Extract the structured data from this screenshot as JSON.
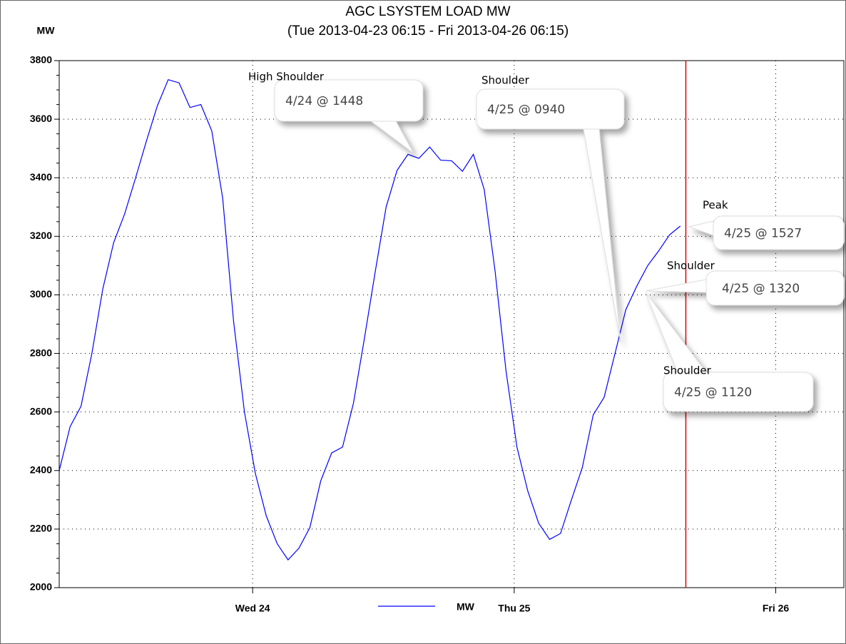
{
  "chart_data": {
    "type": "line",
    "title": "AGC LSYSTEM LOAD MW",
    "subtitle": "(Tue 2013-04-23 06:15 - Fri 2013-04-26 06:15)",
    "y_label": "MW",
    "x": [
      "2013-04-23 06:15",
      "2013-04-23 07:15",
      "2013-04-23 08:15",
      "2013-04-23 09:15",
      "2013-04-23 10:15",
      "2013-04-23 11:15",
      "2013-04-23 12:15",
      "2013-04-23 13:15",
      "2013-04-23 14:15",
      "2013-04-23 15:15",
      "2013-04-23 16:15",
      "2013-04-23 17:15",
      "2013-04-23 18:15",
      "2013-04-23 19:15",
      "2013-04-23 20:15",
      "2013-04-23 21:15",
      "2013-04-23 22:15",
      "2013-04-23 23:15",
      "2013-04-24 00:15",
      "2013-04-24 01:15",
      "2013-04-24 02:15",
      "2013-04-24 03:15",
      "2013-04-24 04:15",
      "2013-04-24 05:15",
      "2013-04-24 06:15",
      "2013-04-24 07:15",
      "2013-04-24 08:15",
      "2013-04-24 09:15",
      "2013-04-24 10:15",
      "2013-04-24 11:15",
      "2013-04-24 12:15",
      "2013-04-24 13:15",
      "2013-04-24 14:15",
      "2013-04-24 15:15",
      "2013-04-24 16:15",
      "2013-04-24 17:15",
      "2013-04-24 18:15",
      "2013-04-24 19:15",
      "2013-04-24 20:15",
      "2013-04-24 21:15",
      "2013-04-24 22:15",
      "2013-04-24 23:15",
      "2013-04-25 00:15",
      "2013-04-25 01:15",
      "2013-04-25 02:15",
      "2013-04-25 03:15",
      "2013-04-25 04:15",
      "2013-04-25 05:15",
      "2013-04-25 06:15",
      "2013-04-25 07:15",
      "2013-04-25 08:15",
      "2013-04-25 09:15",
      "2013-04-25 10:15",
      "2013-04-25 11:15",
      "2013-04-25 12:15",
      "2013-04-25 13:15",
      "2013-04-25 14:15",
      "2013-04-25 15:15"
    ],
    "series": [
      {
        "name": "MW",
        "color": "#0000ff",
        "values": [
          2400,
          2550,
          2620,
          2800,
          3020,
          3179,
          3276,
          3398,
          3525,
          3645,
          3735,
          3724,
          3640,
          3650,
          3560,
          3330,
          2911,
          2600,
          2390,
          2245,
          2150,
          2095,
          2135,
          2205,
          2365,
          2460,
          2480,
          2630,
          2850,
          3080,
          3300,
          3425,
          3480,
          3466,
          3505,
          3460,
          3458,
          3422,
          3480,
          3360,
          3080,
          2740,
          2480,
          2330,
          2220,
          2165,
          2185,
          2300,
          2410,
          2590,
          2650,
          2800,
          2950,
          3030,
          3100,
          3150,
          3205,
          3235
        ]
      }
    ],
    "xlim": [
      "2013-04-23 06:15",
      "2013-04-26 06:15"
    ],
    "xticks": [
      {
        "value": "2013-04-24 00:00",
        "label": "Wed 24"
      },
      {
        "value": "2013-04-25 00:00",
        "label": "Thu 25"
      },
      {
        "value": "2013-04-26 00:00",
        "label": "Fri 26"
      }
    ],
    "ylim": [
      2000,
      3800
    ],
    "yticks": [
      2000,
      2200,
      2400,
      2600,
      2800,
      3000,
      3200,
      3400,
      3600,
      3800
    ],
    "grid": true,
    "vline": {
      "x": "2013-04-25 15:45",
      "color": "#e00000"
    },
    "annotations": [
      {
        "title": "High Shoulder",
        "text": "4/24 @ 1448"
      },
      {
        "title": "Shoulder",
        "text": "4/25 @ 0940"
      },
      {
        "title": "Peak",
        "text": "4/25 @ 1527"
      },
      {
        "title": "Shoulder",
        "text": "4/25 @ 1320"
      },
      {
        "title": "Shoulder",
        "text": "4/25 @ 1120"
      }
    ]
  }
}
